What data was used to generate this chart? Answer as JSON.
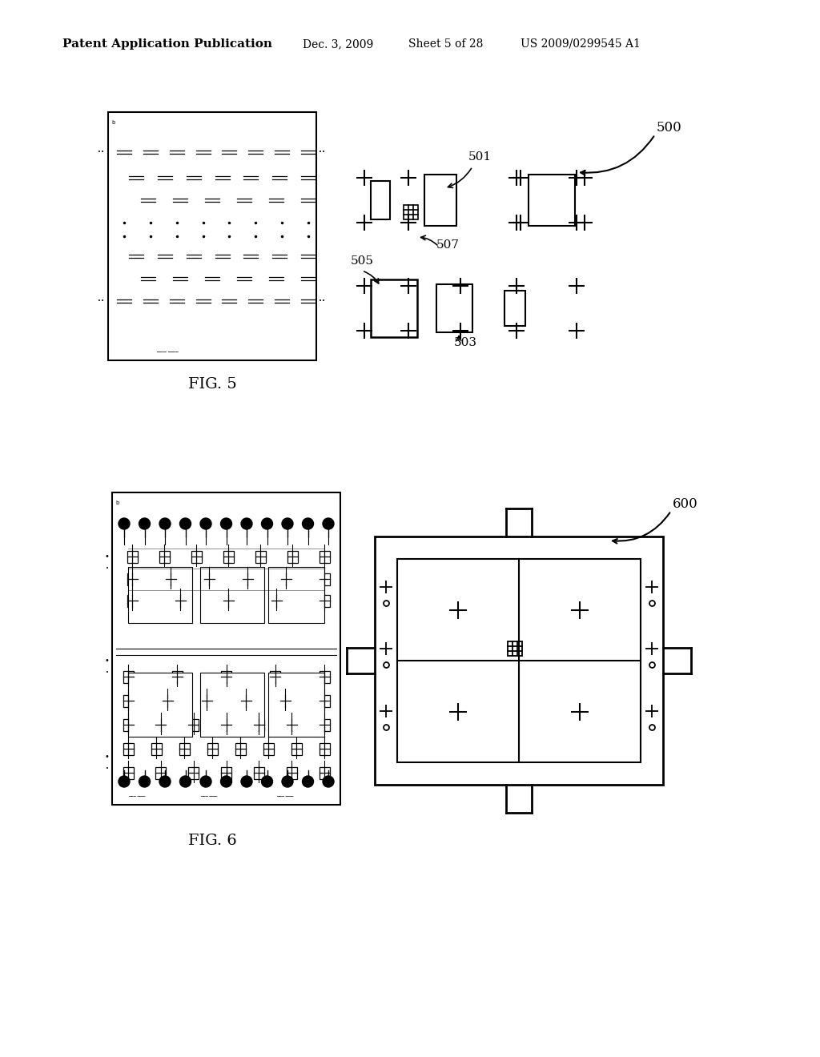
{
  "bg_color": "#ffffff",
  "header_text": "Patent Application Publication",
  "header_date": "Dec. 3, 2009",
  "header_sheet": "Sheet 5 of 28",
  "header_patent": "US 2009/0299545 A1",
  "fig5_label": "FIG. 5",
  "fig6_label": "FIG. 6",
  "label_500": "500",
  "label_501": "501",
  "label_503": "503",
  "label_505": "505",
  "label_507": "507",
  "label_600": "600"
}
